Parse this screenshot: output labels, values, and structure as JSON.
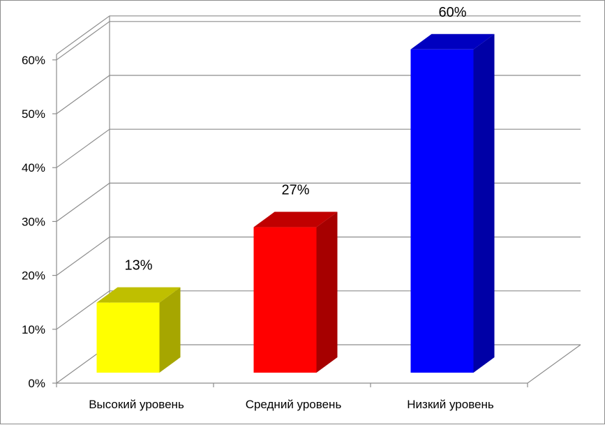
{
  "chart_data": {
    "type": "bar",
    "style": "3d-column",
    "categories": [
      "Высокий уровень",
      "Средний уровень",
      "Низкий уровень"
    ],
    "values": [
      13,
      27,
      60
    ],
    "data_labels": [
      "13%",
      "27%",
      "60%"
    ],
    "colors": [
      "#ffff00",
      "#ff0000",
      "#0000ff"
    ],
    "side_colors": [
      "#a6a600",
      "#a60000",
      "#0000a6"
    ],
    "top_colors": [
      "#bfbf00",
      "#c00000",
      "#0000c0"
    ],
    "ylim": [
      0,
      60
    ],
    "yticks": [
      0,
      10,
      20,
      30,
      40,
      50,
      60
    ],
    "ytick_labels": [
      "0%",
      "10%",
      "20%",
      "30%",
      "40%",
      "50%",
      "60%"
    ],
    "grid": true,
    "legend": "none",
    "title": "",
    "xlabel": "",
    "ylabel": ""
  }
}
